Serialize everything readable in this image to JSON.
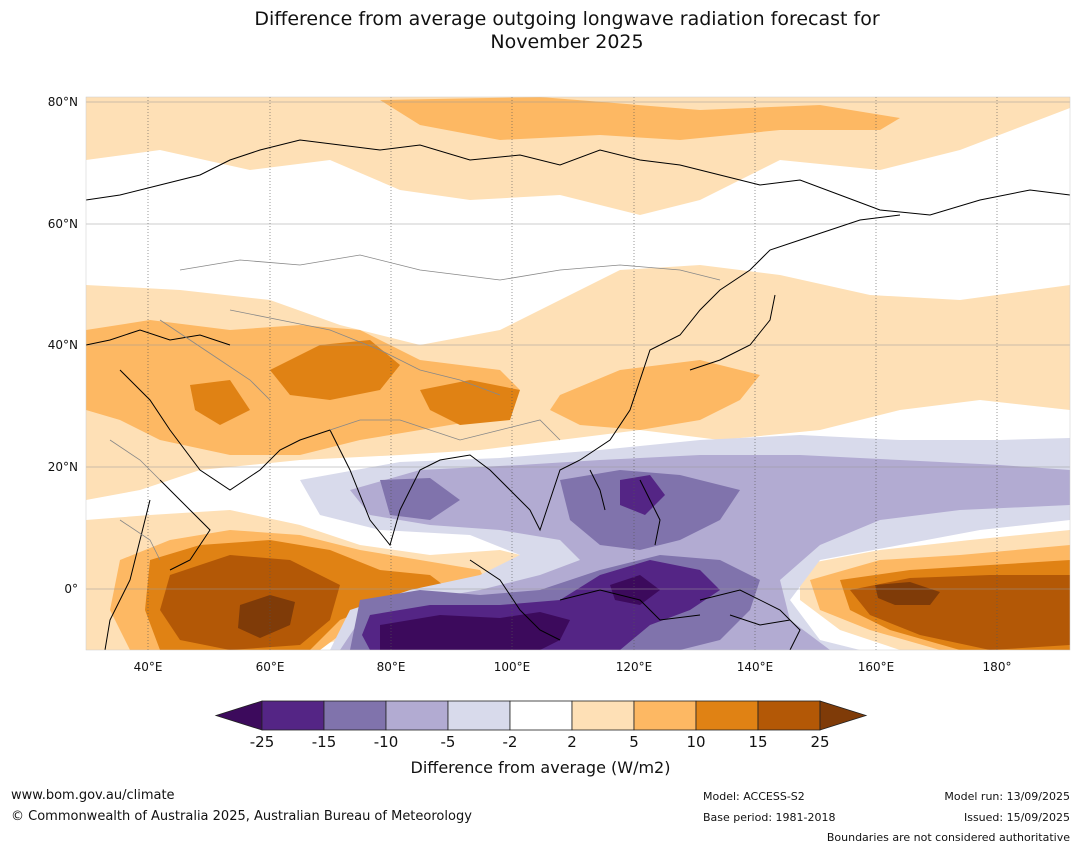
{
  "title_line1": "Difference from average outgoing longwave radiation forecast for",
  "title_line2": "November 2025",
  "lat_ticks": [
    "80°N",
    "60°N",
    "40°N",
    "20°N",
    "0°"
  ],
  "lon_ticks": [
    "40°E",
    "60°E",
    "80°E",
    "100°E",
    "120°E",
    "140°E",
    "160°E",
    "180°"
  ],
  "colorbar": {
    "labels": [
      "-25",
      "-15",
      "-10",
      "-5",
      "-2",
      "2",
      "5",
      "10",
      "15",
      "25"
    ],
    "colors": [
      "#3c0a5c",
      "#542585",
      "#8073ac",
      "#b2abd2",
      "#d8daeb",
      "#ffffff",
      "#fee0b6",
      "#fdb863",
      "#e08214",
      "#b35806",
      "#7f3b08"
    ],
    "title": "Difference from average (W/m2)"
  },
  "footer": {
    "website": "www.bom.gov.au/climate",
    "copyright": "© Commonwealth of Australia 2025, Australian Bureau of Meteorology",
    "model": "Model: ACCESS-S2",
    "base_period": "Base period: 1981-2018",
    "model_run": "Model run: 13/09/2025",
    "issued": "Issued: 15/09/2025",
    "boundaries_note": "Boundaries are not considered authoritative"
  }
}
